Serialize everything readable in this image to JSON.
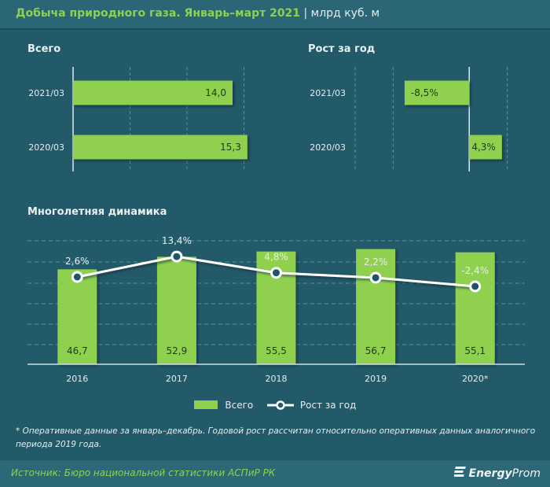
{
  "header": {
    "title": "Добыча природного газа. Январь–март 2021",
    "separator": " | ",
    "unit": "млрд куб. м"
  },
  "colors": {
    "background": "#235a6a",
    "bar": "#8fd14f",
    "line": "#ffffff",
    "title_accent": "#8fd14f"
  },
  "chart_data": [
    {
      "id": "total-quarter",
      "type": "bar",
      "orientation": "horizontal",
      "title": "Всего",
      "categories": [
        "2021/03",
        "2020/03"
      ],
      "values": [
        14.0,
        15.3
      ],
      "labels": [
        "14,0",
        "15,3"
      ],
      "xlim": [
        0,
        20
      ],
      "grid": true
    },
    {
      "id": "growth-quarter",
      "type": "bar",
      "orientation": "horizontal",
      "title": "Рост за год",
      "categories": [
        "2021/03",
        "2020/03"
      ],
      "values": [
        -8.5,
        4.3
      ],
      "labels": [
        "-8,5%",
        "4,3%"
      ],
      "xlim": [
        -15,
        10
      ],
      "grid": true
    },
    {
      "id": "multiyear",
      "type": "bar+line",
      "title": "Многолетняя динамика",
      "categories": [
        "2016",
        "2017",
        "2018",
        "2019",
        "2020*"
      ],
      "series": [
        {
          "name": "Всего",
          "type": "bar",
          "values": [
            46.7,
            52.9,
            55.5,
            56.7,
            55.1
          ],
          "labels": [
            "46,7",
            "52,9",
            "55,5",
            "56,7",
            "55,1"
          ]
        },
        {
          "name": "Рост за год",
          "type": "line",
          "values": [
            2.6,
            13.4,
            4.8,
            2.2,
            -2.4
          ],
          "labels": [
            "2,6%",
            "13,4%",
            "4,8%",
            "2,2%",
            "-2,4%"
          ]
        }
      ],
      "ylim_bar": [
        0,
        60
      ],
      "ylim_line": [
        -20,
        20
      ],
      "legend": "bottom-center",
      "grid": true
    }
  ],
  "legend": {
    "bar_label": "Всего",
    "line_label": "Рост за год"
  },
  "note": "* Оперативные данные за январь–декабрь. Годовой рост рассчитан относительно оперативных данных аналогичного периода 2019 года.",
  "footer": {
    "source": "Источник: Бюро национальной статистики АСПиР РК",
    "logo_bold": "Energy",
    "logo_rest": "Prom"
  }
}
